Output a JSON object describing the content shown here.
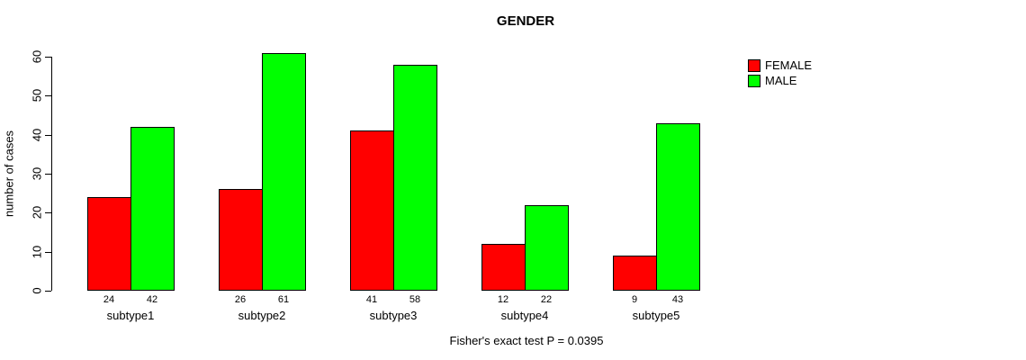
{
  "chart_data": {
    "type": "bar",
    "title": "GENDER",
    "ylabel": "number of cases",
    "xlabel": "",
    "categories": [
      "subtype1",
      "subtype2",
      "subtype3",
      "subtype4",
      "subtype5"
    ],
    "series": [
      {
        "name": "FEMALE",
        "color": "#ff0000",
        "values": [
          24,
          26,
          41,
          12,
          9
        ]
      },
      {
        "name": "MALE",
        "color": "#00ff00",
        "values": [
          42,
          61,
          58,
          22,
          43
        ]
      }
    ],
    "yticks": [
      0,
      10,
      20,
      30,
      40,
      50,
      60
    ],
    "ylim": [
      0,
      60
    ],
    "grid": false,
    "legend_position": "right",
    "bar_value_labels_shown": true,
    "footer": "Fisher's exact test P = 0.0395"
  },
  "colors": {
    "female": "#ff0000",
    "male": "#00ff00",
    "axis": "#000000",
    "background": "#ffffff"
  }
}
